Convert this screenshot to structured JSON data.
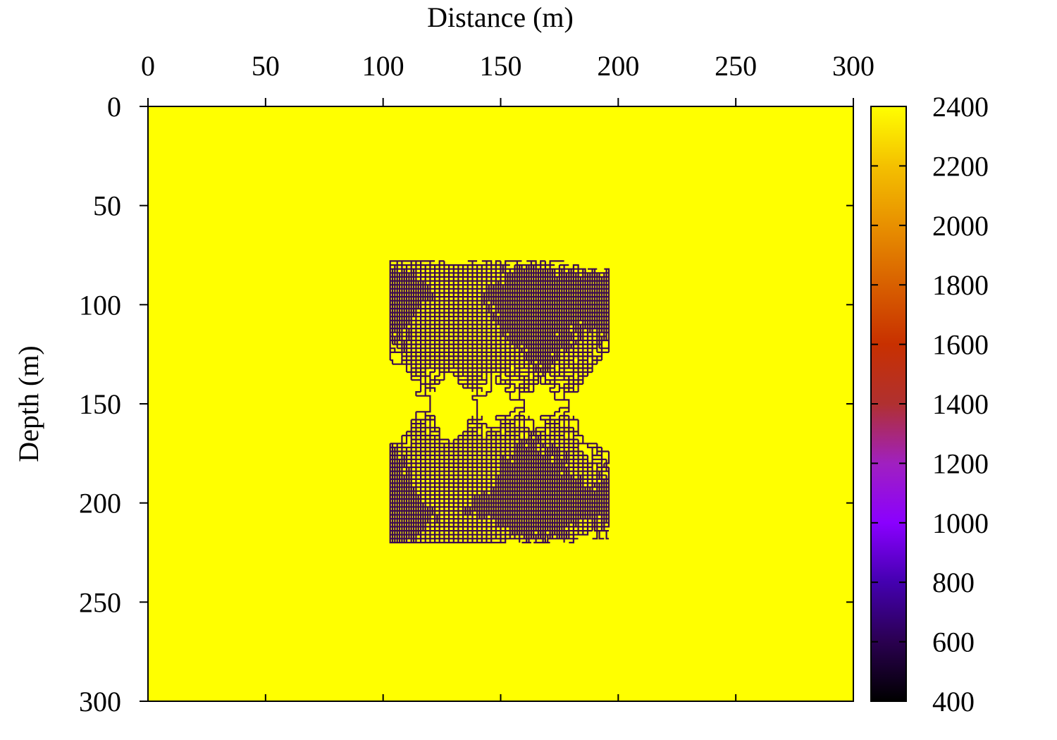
{
  "chart_data": {
    "type": "heatmap",
    "xlabel": "Distance (m)",
    "ylabel": "Depth (m)",
    "xlim": [
      0,
      300
    ],
    "ylim": [
      0,
      300
    ],
    "y_inverted": true,
    "x_axis_position": "top",
    "x_ticks": [
      "0",
      "50",
      "100",
      "150",
      "200",
      "250",
      "300"
    ],
    "y_ticks": [
      "0",
      "50",
      "100",
      "150",
      "200",
      "250",
      "300"
    ],
    "colorbar": {
      "range": [
        400,
        2400
      ],
      "ticks": [
        "400",
        "600",
        "800",
        "1000",
        "1200",
        "1400",
        "1600",
        "1800",
        "2000",
        "2200",
        "2400"
      ],
      "colormap": [
        "#000000",
        "#2a0050",
        "#4400b0",
        "#8a00ff",
        "#a020c0",
        "#b03030",
        "#c83000",
        "#d86000",
        "#e89000",
        "#f4c000",
        "#ffff00"
      ]
    },
    "background_value": 2400,
    "anomaly": {
      "value": 600,
      "pattern": "branching fracture network",
      "x_range": [
        103,
        196
      ],
      "depth_range": [
        78,
        220
      ],
      "pinch_depth": 150,
      "lobe_centers_x": [
        120,
        140,
        160,
        179
      ]
    },
    "grid": false,
    "legend": "colorbar-right"
  },
  "colors": {
    "background": "#ffff00",
    "anomaly": "#3c0a50",
    "frame": "#000000"
  }
}
